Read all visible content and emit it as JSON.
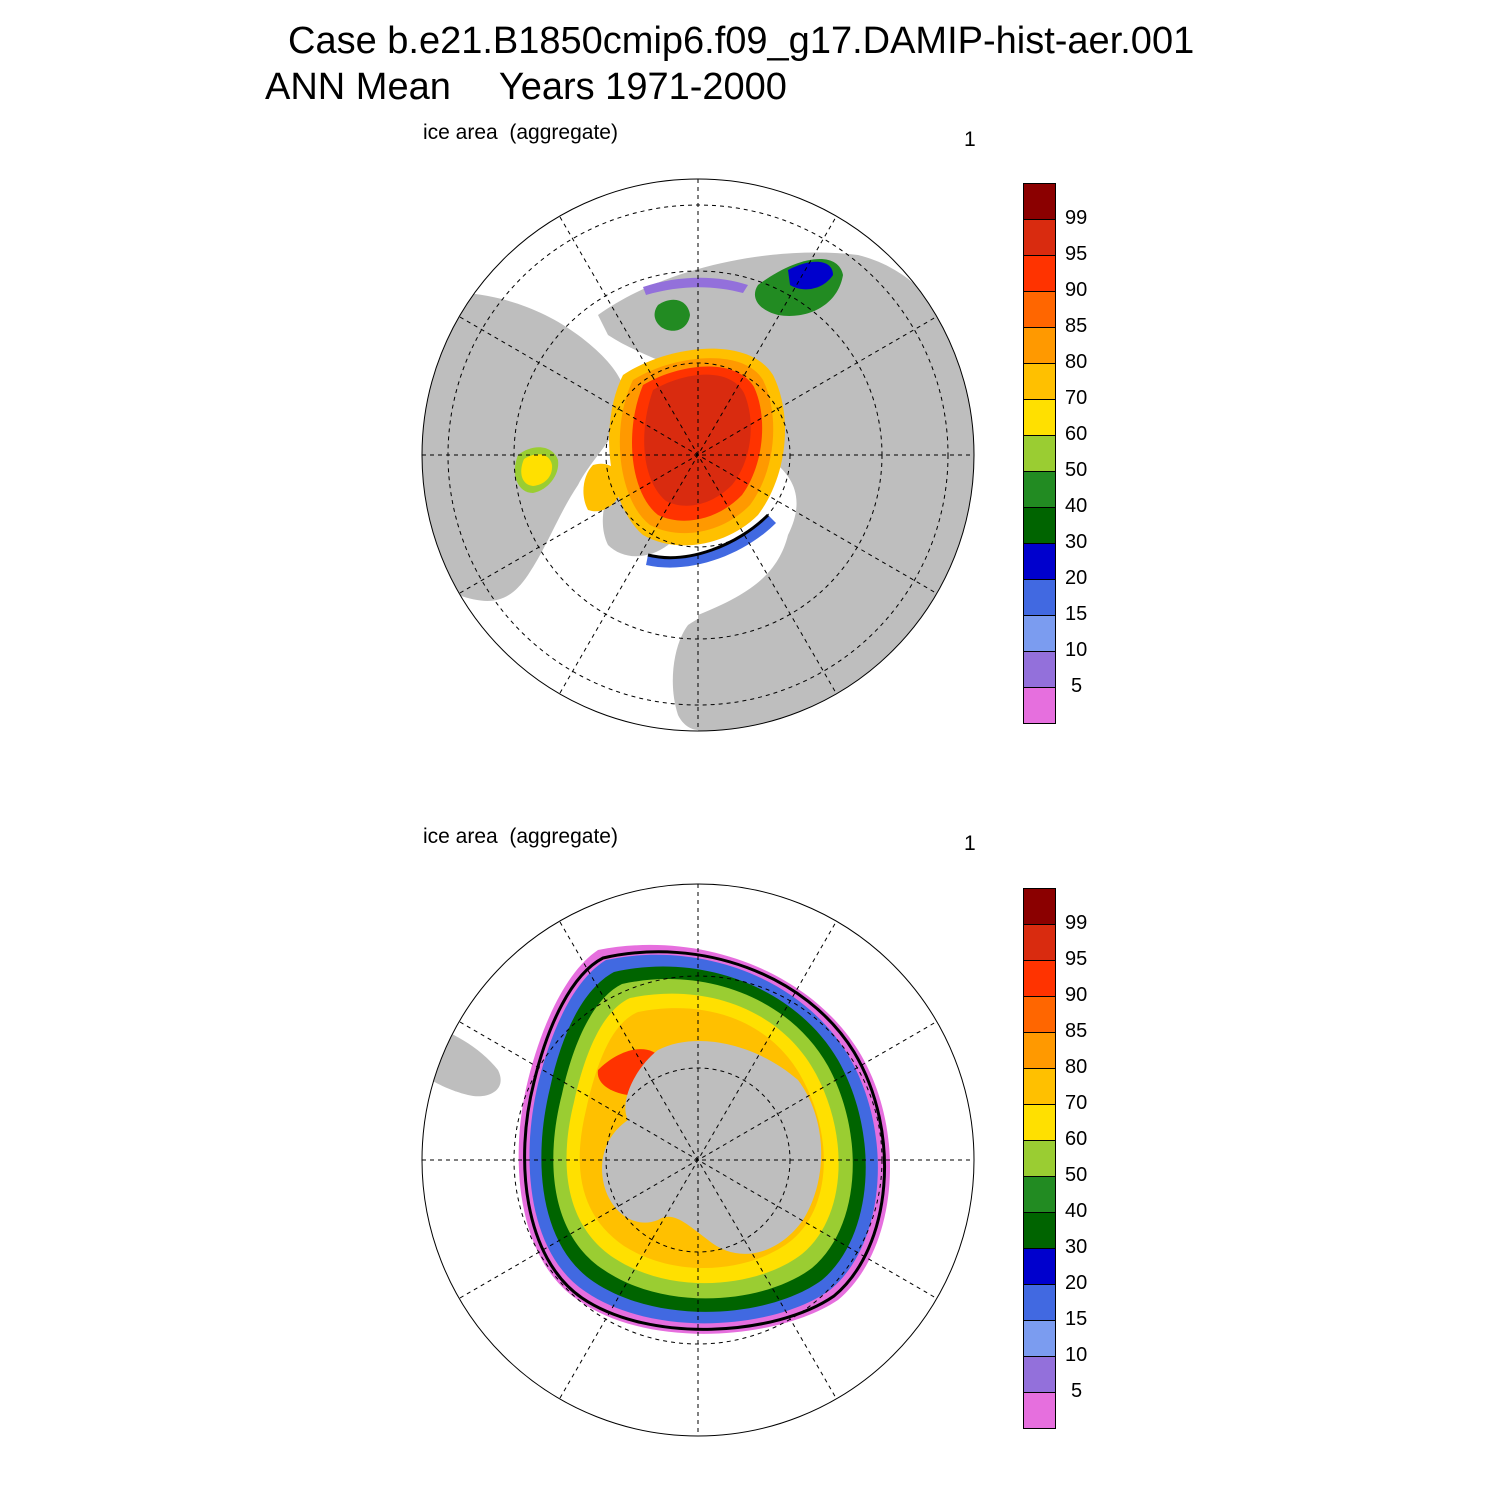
{
  "title": {
    "line1": "Case b.e21.B1850cmip6.f09_g17.DAMIP-hist-aer.001",
    "line2_a": "ANN Mean",
    "line2_b": "Years 1971-2000"
  },
  "colors": {
    "land": "#bebebe",
    "ocean": "#ffffff",
    "levels": [
      "#e66fde",
      "#9370db",
      "#7b9cf0",
      "#4169e1",
      "#0000cd",
      "#006400",
      "#228b22",
      "#9acd32",
      "#ffe000",
      "#ffc000",
      "#ff9900",
      "#ff6600",
      "#ff3300",
      "#d92b0f",
      "#8b0000"
    ]
  },
  "colorbar": {
    "labels": [
      "99",
      "95",
      "90",
      "85",
      "80",
      "70",
      "60",
      "50",
      "40",
      "30",
      "20",
      "15",
      "10",
      "5"
    ]
  },
  "panels": [
    {
      "id": "north",
      "label": "ice area  (aggregate)",
      "number": "1",
      "hemisphere": "Northern"
    },
    {
      "id": "south",
      "label": "ice area  (aggregate)",
      "number": "1",
      "hemisphere": "Southern"
    }
  ]
}
